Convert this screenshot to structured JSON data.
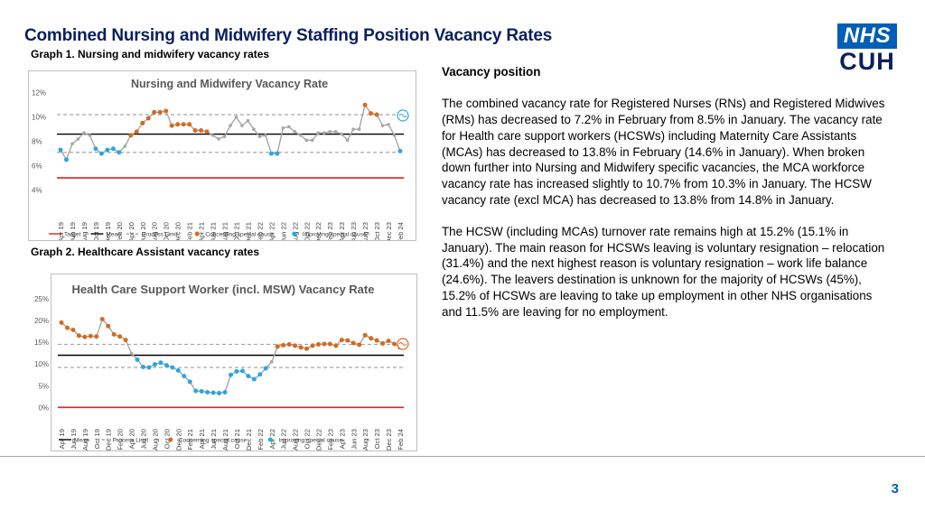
{
  "page": {
    "title": "Combined Nursing and Midwifery Staffing Position Vacancy Rates",
    "graph1_label": "Graph 1. Nursing and midwifery vacancy rates",
    "graph2_label": "Graph 2. Healthcare Assistant vacancy rates",
    "page_number": "3"
  },
  "logo": {
    "top": "NHS",
    "bottom": "CUH",
    "color": "#005eb8"
  },
  "text": {
    "heading": "Vacancy position",
    "para1": "The combined vacancy rate for Registered Nurses (RNs) and Registered Midwives (RMs) has decreased to 7.2% in February from 8.5% in January. The vacancy rate for Health care support workers (HCSWs) including Maternity Care Assistants (MCAs) has decreased to 13.8% in February (14.6% in January).  When broken down further into Nursing and Midwifery specific vacancies, the MCA workforce vacancy rate has increased slightly to 10.7% from 10.3% in January. The HCSW vacancy rate (excl MCA) has decreased to 13.8% from 14.8% in January.",
    "para2": "The HCSW (including MCAs) turnover rate remains high at 15.2% (15.1% in January).  The main reason for HCSWs leaving is voluntary resignation – relocation (31.4%) and the next highest reason is voluntary resignation – work life balance (24.6%).  The leavers destination is unknown for the majority of HCSWs (45%), 15.2% of HCSWs are leaving to take up employment in other NHS organisations and 11.5% are leaving for no employment."
  },
  "chart_data": [
    {
      "type": "line",
      "title": "Nursing and Midwifery Vacancy Rate",
      "ylim": [
        3,
        12.5
      ],
      "yticks": [
        4,
        6,
        8,
        10,
        12
      ],
      "ytick_labels": [
        "4%",
        "6%",
        "8%",
        "10%",
        "12%"
      ],
      "xtick_labels": [
        "Apr 19",
        "Jun 19",
        "Aug 19",
        "Oct 19",
        "Dec 19",
        "Feb 20",
        "Apr 20",
        "Jun 20",
        "Aug 20",
        "Oct 20",
        "Dec 20",
        "Feb 21",
        "Apr 21",
        "Jun 21",
        "Aug 21",
        "Oct 21",
        "Dec 21",
        "Feb 22",
        "Apr 22",
        "Jun 22",
        "Aug 22",
        "Oct 22",
        "Dec 22",
        "Feb 23",
        "Apr 23",
        "Jun 23",
        "Aug 23",
        "Oct 23",
        "Dec 23",
        "Feb 24"
      ],
      "x": [
        "Apr 19",
        "May 19",
        "Jun 19",
        "Jul 19",
        "Aug 19",
        "Sep 19",
        "Oct 19",
        "Nov 19",
        "Dec 19",
        "Jan 20",
        "Feb 20",
        "Mar 20",
        "Apr 20",
        "May 20",
        "Jun 20",
        "Jul 20",
        "Aug 20",
        "Sep 20",
        "Oct 20",
        "Nov 20",
        "Dec 20",
        "Jan 21",
        "Feb 21",
        "Mar 21",
        "Apr 21",
        "May 21",
        "Jun 21",
        "Jul 21",
        "Aug 21",
        "Sep 21",
        "Oct 21",
        "Nov 21",
        "Dec 21",
        "Jan 22",
        "Feb 22",
        "Mar 22",
        "Apr 22",
        "May 22",
        "Jun 22",
        "Jul 22",
        "Aug 22",
        "Sep 22",
        "Oct 22",
        "Nov 22",
        "Dec 22",
        "Jan 23",
        "Feb 23",
        "Mar 23",
        "Apr 23",
        "May 23",
        "Jun 23",
        "Jul 23",
        "Aug 23",
        "Sep 23",
        "Oct 23",
        "Nov 23",
        "Dec 23",
        "Jan 24",
        "Feb 24"
      ],
      "values": [
        7.3,
        6.5,
        7.8,
        8.2,
        8.7,
        8.5,
        7.4,
        7.0,
        7.3,
        7.4,
        7.1,
        7.6,
        8.5,
        8.8,
        9.5,
        9.9,
        10.4,
        10.4,
        10.5,
        9.3,
        9.4,
        9.4,
        9.4,
        8.9,
        8.9,
        8.8,
        8.5,
        8.2,
        8.4,
        9.3,
        10.0,
        9.3,
        9.7,
        9.0,
        8.4,
        8.5,
        7.0,
        7.0,
        9.1,
        9.2,
        8.8,
        8.5,
        8.1,
        8.1,
        8.7,
        8.7,
        8.8,
        8.8,
        8.6,
        8.1,
        9.0,
        9.0,
        11.0,
        10.3,
        10.2,
        9.3,
        9.4,
        8.5,
        7.2
      ],
      "special_cause": [
        "improving",
        "improving",
        "",
        "",
        "",
        "",
        "improving",
        "improving",
        "improving",
        "improving",
        "improving",
        "",
        "concerning",
        "concerning",
        "concerning",
        "concerning",
        "concerning",
        "concerning",
        "concerning",
        "concerning",
        "concerning",
        "concerning",
        "concerning",
        "concerning",
        "concerning",
        "concerning",
        "",
        "",
        "",
        "",
        "",
        "",
        "",
        "",
        "",
        "",
        "improving",
        "improving",
        "",
        "",
        "",
        "",
        "",
        "",
        "",
        "",
        "",
        "",
        "",
        "",
        "",
        "",
        "concerning",
        "concerning",
        "concerning",
        "",
        "",
        "",
        "improving"
      ],
      "target": 5.0,
      "mean": 8.6,
      "upper_process_limit": 10.2,
      "lower_process_limit": 7.1,
      "legend": [
        "Target",
        "Mean",
        "Process Limit",
        "Concerning special cause",
        "Improving special cause"
      ],
      "colors": {
        "line": "#a6a6a6",
        "target": "#e02020",
        "mean": "#000000",
        "limit": "#a6a6a6",
        "concerning": "#d46a1e",
        "improving": "#2aa8e0",
        "neutral": "#a6a6a6",
        "title": "#595959"
      }
    },
    {
      "type": "line",
      "title": "Health Care Support Worker (incl. MSW) Vacancy Rate",
      "ylim": [
        -2,
        26
      ],
      "yticks": [
        0,
        5,
        10,
        15,
        20,
        25
      ],
      "ytick_labels": [
        "0%",
        "5%",
        "10%",
        "15%",
        "20%",
        "25%"
      ],
      "xtick_labels": [
        "Apr 19",
        "Jun 19",
        "Aug 19",
        "Oct 19",
        "Dec 19",
        "Feb 20",
        "Apr 20",
        "Jun 20",
        "Aug 20",
        "Oct 20",
        "Dec 20",
        "Feb 21",
        "Apr 21",
        "Jun 21",
        "Aug 21",
        "Oct 21",
        "Dec 21",
        "Feb 22",
        "Apr 22",
        "Jun 22",
        "Aug 22",
        "Oct 22",
        "Dec 22",
        "Feb 23",
        "Apr 23",
        "Jun 23",
        "Aug 23",
        "Oct 23",
        "Dec 23",
        "Feb 24"
      ],
      "x": [
        "Apr 19",
        "May 19",
        "Jun 19",
        "Jul 19",
        "Aug 19",
        "Sep 19",
        "Oct 19",
        "Nov 19",
        "Dec 19",
        "Jan 20",
        "Feb 20",
        "Mar 20",
        "Apr 20",
        "May 20",
        "Jun 20",
        "Jul 20",
        "Aug 20",
        "Sep 20",
        "Oct 20",
        "Nov 20",
        "Dec 20",
        "Jan 21",
        "Feb 21",
        "Mar 21",
        "Apr 21",
        "May 21",
        "Jun 21",
        "Jul 21",
        "Aug 21",
        "Sep 21",
        "Oct 21",
        "Nov 21",
        "Dec 21",
        "Jan 22",
        "Feb 22",
        "Mar 22",
        "Apr 22",
        "May 22",
        "Jun 22",
        "Jul 22",
        "Aug 22",
        "Sep 22",
        "Oct 22",
        "Nov 22",
        "Dec 22",
        "Jan 23",
        "Feb 23",
        "Mar 23",
        "Apr 23",
        "May 23",
        "Jun 23",
        "Jul 23",
        "Aug 23",
        "Sep 23",
        "Oct 23",
        "Nov 23",
        "Dec 23",
        "Jan 24",
        "Feb 24"
      ],
      "values": [
        19.5,
        18.3,
        17.8,
        16.5,
        16.2,
        16.4,
        16.3,
        20.3,
        18.7,
        16.8,
        16.3,
        15.5,
        12.4,
        11.0,
        9.3,
        9.2,
        9.9,
        10.3,
        9.7,
        9.2,
        8.5,
        7.2,
        5.9,
        3.8,
        3.7,
        3.5,
        3.4,
        3.3,
        3.5,
        7.5,
        8.3,
        8.4,
        7.2,
        6.5,
        7.6,
        9.0,
        10.5,
        14.0,
        14.3,
        14.5,
        14.2,
        13.8,
        13.5,
        14.2,
        14.5,
        14.6,
        14.6,
        14.2,
        15.5,
        15.4,
        14.8,
        14.4,
        16.6,
        15.9,
        15.4,
        14.7,
        15.3,
        14.6,
        13.8
      ],
      "special_cause": [
        "concerning",
        "concerning",
        "concerning",
        "concerning",
        "concerning",
        "concerning",
        "concerning",
        "concerning",
        "concerning",
        "concerning",
        "concerning",
        "concerning",
        "",
        "improving",
        "improving",
        "improving",
        "improving",
        "improving",
        "improving",
        "improving",
        "improving",
        "improving",
        "improving",
        "improving",
        "improving",
        "improving",
        "improving",
        "improving",
        "improving",
        "improving",
        "improving",
        "improving",
        "improving",
        "improving",
        "improving",
        "improving",
        "",
        "concerning",
        "concerning",
        "concerning",
        "concerning",
        "concerning",
        "concerning",
        "concerning",
        "concerning",
        "concerning",
        "concerning",
        "concerning",
        "concerning",
        "concerning",
        "concerning",
        "concerning",
        "concerning",
        "concerning",
        "concerning",
        "concerning",
        "concerning",
        "concerning",
        "concerning"
      ],
      "mean": 12.0,
      "upper_process_limit": 14.5,
      "lower_process_limit": 9.2,
      "target": 0,
      "legend": [
        "Mean",
        "Process Limit",
        "Concerning special cause",
        "Improving special cause"
      ],
      "colors": {
        "line": "#a6a6a6",
        "target": "#e02020",
        "mean": "#000000",
        "limit": "#a6a6a6",
        "concerning": "#d46a1e",
        "improving": "#2aa8e0",
        "neutral": "#a6a6a6",
        "title": "#595959"
      }
    }
  ]
}
